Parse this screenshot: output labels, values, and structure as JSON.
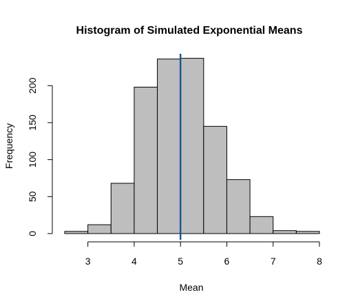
{
  "chart_data": {
    "type": "bar",
    "title": "Histogram of Simulated Exponential Means",
    "xlabel": "Mean",
    "ylabel": "Frequency",
    "bins": [
      {
        "start": 2.5,
        "end": 3.0,
        "count": 3
      },
      {
        "start": 3.0,
        "end": 3.5,
        "count": 12
      },
      {
        "start": 3.5,
        "end": 4.0,
        "count": 68
      },
      {
        "start": 4.0,
        "end": 4.5,
        "count": 198
      },
      {
        "start": 4.5,
        "end": 5.0,
        "count": 236
      },
      {
        "start": 5.0,
        "end": 5.5,
        "count": 237
      },
      {
        "start": 5.5,
        "end": 6.0,
        "count": 145
      },
      {
        "start": 6.0,
        "end": 6.5,
        "count": 73
      },
      {
        "start": 6.5,
        "end": 7.0,
        "count": 23
      },
      {
        "start": 7.0,
        "end": 7.5,
        "count": 4
      },
      {
        "start": 7.5,
        "end": 8.0,
        "count": 3
      }
    ],
    "xlim": [
      2.5,
      8.0
    ],
    "ylim": [
      0,
      245
    ],
    "x_ticks": [
      3,
      4,
      5,
      6,
      7,
      8
    ],
    "y_ticks": [
      0,
      50,
      100,
      150,
      200
    ],
    "reference_lines": [
      {
        "x": 5.0,
        "color": "#1f7a5c"
      },
      {
        "x": 5.0,
        "color": "#1e3fbf"
      }
    ],
    "bar_fill": "#bebebe",
    "grid": false
  }
}
